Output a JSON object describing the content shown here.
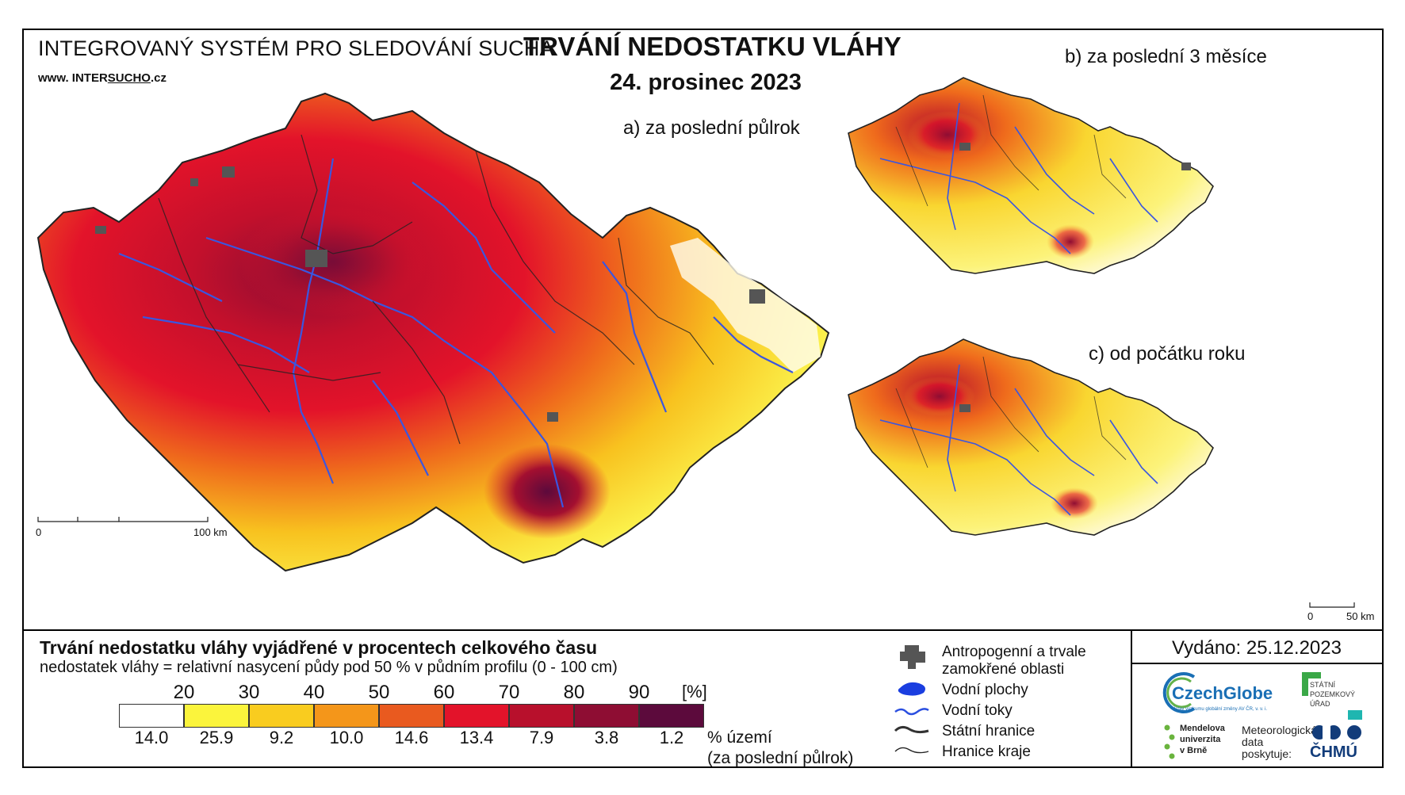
{
  "header": {
    "system_title": "INTEGROVANÝ SYSTÉM PRO SLEDOVÁNÍ SUCHA",
    "website_prefix": "www. INTER",
    "website_brand": "SUCHO",
    "website_suffix": ".cz",
    "main_title": "TRVÁNÍ NEDOSTATKU VLÁHY",
    "date": "24. prosinec 2023"
  },
  "maps": {
    "a_label": "a) za poslední půlrok",
    "b_label": "b) za poslední 3 měsíce",
    "c_label": "c) od počátku roku",
    "scale_main": {
      "zero": "0",
      "end": "100 km"
    },
    "scale_small": {
      "zero": "0",
      "end": "50 km"
    }
  },
  "legend": {
    "title": "Trvání nedostatku vláhy vyjádřené v procentech celkového času",
    "subtitle": "nedostatek vláhy = relativní nasycení půdy pod 50 % v půdním profilu (0 - 100 cm)",
    "unit": "[%]",
    "thresholds": [
      "20",
      "30",
      "40",
      "50",
      "60",
      "70",
      "80",
      "90"
    ],
    "classes": [
      {
        "color": "#ffffff",
        "share": "14.0"
      },
      {
        "color": "#fbf43c",
        "share": "25.9"
      },
      {
        "color": "#f9cc1f",
        "share": "9.2"
      },
      {
        "color": "#f4961a",
        "share": "10.0"
      },
      {
        "color": "#e95a1f",
        "share": "14.6"
      },
      {
        "color": "#e3132a",
        "share": "13.4"
      },
      {
        "color": "#b8102c",
        "share": "7.9"
      },
      {
        "color": "#8e0d33",
        "share": "3.8"
      },
      {
        "color": "#5c0a3c",
        "share": "1.2"
      }
    ],
    "area_label_1": "% území",
    "area_label_2": "(za poslední půlrok)"
  },
  "symbols": {
    "anthropogenic_1": "Antropogenní a trvale",
    "anthropogenic_2": "zamokřené oblasti",
    "water_bodies": "Vodní plochy",
    "rivers": "Vodní toky",
    "state_border": "Státní hranice",
    "region_border": "Hranice kraje"
  },
  "footer": {
    "issued": "Vydáno: 25.12.2023",
    "czechglobe": "CzechGlobe",
    "czechglobe_sub": "Ústav výzkumu globální změny AV ČR, v. v. i.",
    "spu_1": "STÁTNÍ",
    "spu_2": "POZEMKOVÝ",
    "spu_3": "ÚŘAD",
    "mendel_1": "Mendelova",
    "mendel_2": "univerzita",
    "mendel_3": "v Brně",
    "met_1": "Meteorologická",
    "met_2": "data",
    "met_3": "poskytuje:",
    "chmu": "ČHMÚ"
  },
  "colors": {
    "river": "#3a56e0",
    "urban": "#555555"
  }
}
